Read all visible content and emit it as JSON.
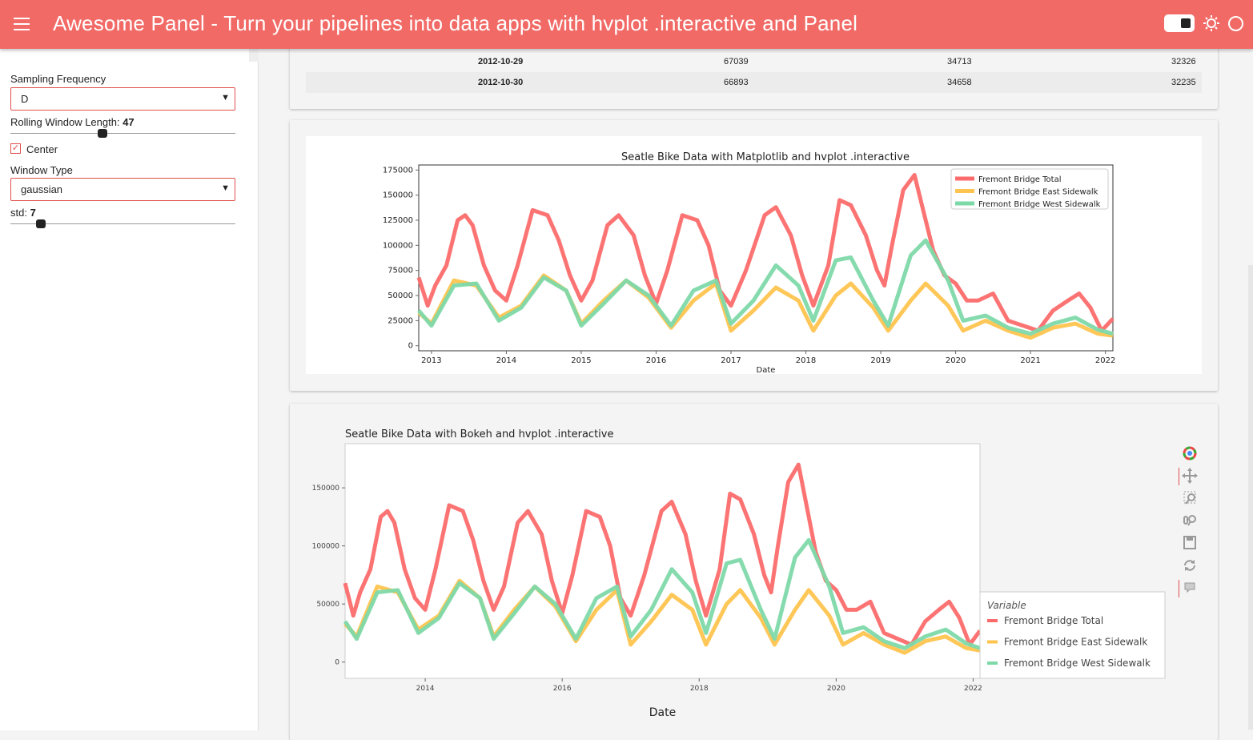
{
  "header": {
    "title": "Awesome Panel  -  Turn your pipelines into data apps with hvplot .interactive and Panel"
  },
  "sidebar": {
    "sampling_frequency_label": "Sampling Frequency",
    "sampling_frequency_value": "D",
    "rolling_window_label": "Rolling Window Length: ",
    "rolling_window_value": "47",
    "rolling_window_fraction": 0.41,
    "center_label": "Center",
    "center_checked": true,
    "window_type_label": "Window Type",
    "window_type_value": "gaussian",
    "std_label": "std: ",
    "std_value": "7",
    "std_fraction": 0.135
  },
  "table": {
    "rows": [
      [
        "2012-10-29",
        "67039",
        "34713",
        "32326"
      ],
      [
        "2012-10-30",
        "66893",
        "34658",
        "32235"
      ]
    ]
  },
  "colors": {
    "accent": "#f16a66",
    "total": "#fc6b6b",
    "east": "#fec44f",
    "west": "#7ed9a9"
  },
  "icons": [
    "menu-icon",
    "theme-toggle-icon",
    "sun-icon",
    "circle-icon",
    "bokeh-logo-icon",
    "pan-icon",
    "box-zoom-icon",
    "wheel-zoom-icon",
    "save-icon",
    "reset-icon",
    "hover-icon"
  ],
  "chart_data": [
    {
      "type": "line",
      "title": "Seatle Bike Data with Matplotlib and hvplot .interactive",
      "xlabel": "Date",
      "ylabel": "",
      "x_ticks": [
        "2013",
        "2014",
        "2015",
        "2016",
        "2017",
        "2018",
        "2019",
        "2020",
        "2021",
        "2022"
      ],
      "y_ticks": [
        "0",
        "25000",
        "50000",
        "75000",
        "100000",
        "125000",
        "150000",
        "175000"
      ],
      "xlim": [
        2012.83,
        2022.1
      ],
      "ylim": [
        -5000,
        180000
      ],
      "legend_position": "top-right",
      "series": [
        {
          "name": "Fremont Bridge Total",
          "x": [
            2012.83,
            2012.95,
            2013.05,
            2013.2,
            2013.35,
            2013.45,
            2013.55,
            2013.7,
            2013.85,
            2014.0,
            2014.15,
            2014.35,
            2014.55,
            2014.7,
            2014.85,
            2015.0,
            2015.15,
            2015.35,
            2015.5,
            2015.7,
            2015.85,
            2016.0,
            2016.15,
            2016.35,
            2016.55,
            2016.7,
            2016.85,
            2017.0,
            2017.2,
            2017.45,
            2017.6,
            2017.8,
            2017.95,
            2018.1,
            2018.3,
            2018.45,
            2018.6,
            2018.8,
            2018.95,
            2019.05,
            2019.15,
            2019.3,
            2019.45,
            2019.55,
            2019.7,
            2019.85,
            2020.0,
            2020.15,
            2020.3,
            2020.5,
            2020.7,
            2020.9,
            2021.1,
            2021.3,
            2021.5,
            2021.65,
            2021.8,
            2021.95,
            2022.1
          ],
          "y": [
            68000,
            40000,
            60000,
            80000,
            125000,
            130000,
            120000,
            80000,
            55000,
            45000,
            80000,
            135000,
            130000,
            105000,
            70000,
            45000,
            65000,
            120000,
            130000,
            110000,
            70000,
            42000,
            75000,
            130000,
            125000,
            100000,
            55000,
            40000,
            75000,
            130000,
            138000,
            110000,
            70000,
            40000,
            80000,
            145000,
            140000,
            110000,
            75000,
            60000,
            100000,
            155000,
            170000,
            140000,
            95000,
            70000,
            62000,
            45000,
            45000,
            52000,
            25000,
            20000,
            15000,
            35000,
            45000,
            52000,
            38000,
            15000,
            27000
          ]
        },
        {
          "name": "Fremont Bridge East Sidewalk",
          "x": [
            2012.83,
            2013.0,
            2013.3,
            2013.6,
            2013.9,
            2014.2,
            2014.5,
            2014.8,
            2015.0,
            2015.3,
            2015.6,
            2015.9,
            2016.2,
            2016.5,
            2016.8,
            2017.0,
            2017.3,
            2017.6,
            2017.9,
            2018.1,
            2018.4,
            2018.6,
            2018.9,
            2019.1,
            2019.4,
            2019.6,
            2019.9,
            2020.1,
            2020.4,
            2020.7,
            2021.0,
            2021.3,
            2021.6,
            2021.9,
            2022.1
          ],
          "y": [
            33000,
            22000,
            65000,
            60000,
            28000,
            40000,
            70000,
            55000,
            22000,
            45000,
            65000,
            48000,
            18000,
            45000,
            62000,
            15000,
            35000,
            58000,
            45000,
            15000,
            50000,
            62000,
            38000,
            15000,
            45000,
            62000,
            40000,
            15000,
            25000,
            15000,
            8000,
            18000,
            22000,
            12000,
            10000
          ]
        },
        {
          "name": "Fremont Bridge West Sidewalk",
          "x": [
            2012.83,
            2013.0,
            2013.3,
            2013.6,
            2013.9,
            2014.2,
            2014.5,
            2014.8,
            2015.0,
            2015.3,
            2015.6,
            2015.9,
            2016.2,
            2016.5,
            2016.8,
            2017.0,
            2017.3,
            2017.6,
            2017.9,
            2018.1,
            2018.4,
            2018.6,
            2018.9,
            2019.1,
            2019.4,
            2019.6,
            2019.9,
            2020.1,
            2020.4,
            2020.7,
            2021.0,
            2021.3,
            2021.6,
            2021.9,
            2022.1
          ],
          "y": [
            35000,
            20000,
            60000,
            62000,
            25000,
            38000,
            68000,
            55000,
            20000,
            42000,
            65000,
            50000,
            20000,
            55000,
            65000,
            22000,
            45000,
            80000,
            60000,
            25000,
            85000,
            88000,
            45000,
            20000,
            90000,
            105000,
            65000,
            25000,
            30000,
            18000,
            12000,
            22000,
            28000,
            16000,
            12000
          ]
        }
      ]
    },
    {
      "type": "line",
      "title": "Seatle Bike Data with Bokeh and hvplot .interactive",
      "xlabel": "Date",
      "ylabel": "",
      "x_ticks": [
        "2014",
        "2016",
        "2018",
        "2020",
        "2022"
      ],
      "y_ticks": [
        "0",
        "50000",
        "100000",
        "150000"
      ],
      "xlim": [
        2012.83,
        2022.1
      ],
      "ylim": [
        -14000,
        188000
      ],
      "legend_title": "Variable",
      "legend_position": "right",
      "series": [
        {
          "name": "Fremont Bridge Total",
          "x": [
            2012.83,
            2012.95,
            2013.05,
            2013.2,
            2013.35,
            2013.45,
            2013.55,
            2013.7,
            2013.85,
            2014.0,
            2014.15,
            2014.35,
            2014.55,
            2014.7,
            2014.85,
            2015.0,
            2015.15,
            2015.35,
            2015.5,
            2015.7,
            2015.85,
            2016.0,
            2016.15,
            2016.35,
            2016.55,
            2016.7,
            2016.85,
            2017.0,
            2017.2,
            2017.45,
            2017.6,
            2017.8,
            2017.95,
            2018.1,
            2018.3,
            2018.45,
            2018.6,
            2018.8,
            2018.95,
            2019.05,
            2019.15,
            2019.3,
            2019.45,
            2019.55,
            2019.7,
            2019.85,
            2020.0,
            2020.15,
            2020.3,
            2020.5,
            2020.7,
            2020.9,
            2021.1,
            2021.3,
            2021.5,
            2021.65,
            2021.8,
            2021.95,
            2022.1
          ],
          "y": [
            68000,
            40000,
            60000,
            80000,
            125000,
            130000,
            120000,
            80000,
            55000,
            45000,
            80000,
            135000,
            130000,
            105000,
            70000,
            45000,
            65000,
            120000,
            130000,
            110000,
            70000,
            42000,
            75000,
            130000,
            125000,
            100000,
            55000,
            40000,
            75000,
            130000,
            138000,
            110000,
            70000,
            40000,
            80000,
            145000,
            140000,
            110000,
            75000,
            60000,
            100000,
            155000,
            170000,
            140000,
            95000,
            70000,
            62000,
            45000,
            45000,
            52000,
            25000,
            20000,
            15000,
            35000,
            45000,
            52000,
            38000,
            15000,
            27000
          ]
        },
        {
          "name": "Fremont Bridge East Sidewalk",
          "x": [
            2012.83,
            2013.0,
            2013.3,
            2013.6,
            2013.9,
            2014.2,
            2014.5,
            2014.8,
            2015.0,
            2015.3,
            2015.6,
            2015.9,
            2016.2,
            2016.5,
            2016.8,
            2017.0,
            2017.3,
            2017.6,
            2017.9,
            2018.1,
            2018.4,
            2018.6,
            2018.9,
            2019.1,
            2019.4,
            2019.6,
            2019.9,
            2020.1,
            2020.4,
            2020.7,
            2021.0,
            2021.3,
            2021.6,
            2021.9,
            2022.1
          ],
          "y": [
            33000,
            22000,
            65000,
            60000,
            28000,
            40000,
            70000,
            55000,
            22000,
            45000,
            65000,
            48000,
            18000,
            45000,
            62000,
            15000,
            35000,
            58000,
            45000,
            15000,
            50000,
            62000,
            38000,
            15000,
            45000,
            62000,
            40000,
            15000,
            25000,
            15000,
            8000,
            18000,
            22000,
            12000,
            10000
          ]
        },
        {
          "name": "Fremont Bridge West Sidewalk",
          "x": [
            2012.83,
            2013.0,
            2013.3,
            2013.6,
            2013.9,
            2014.2,
            2014.5,
            2014.8,
            2015.0,
            2015.3,
            2015.6,
            2015.9,
            2016.2,
            2016.5,
            2016.8,
            2017.0,
            2017.3,
            2017.6,
            2017.9,
            2018.1,
            2018.4,
            2018.6,
            2018.9,
            2019.1,
            2019.4,
            2019.6,
            2019.9,
            2020.1,
            2020.4,
            2020.7,
            2021.0,
            2021.3,
            2021.6,
            2021.9,
            2022.1
          ],
          "y": [
            35000,
            20000,
            60000,
            62000,
            25000,
            38000,
            68000,
            55000,
            20000,
            42000,
            65000,
            50000,
            20000,
            55000,
            65000,
            22000,
            45000,
            80000,
            60000,
            25000,
            85000,
            88000,
            45000,
            20000,
            90000,
            105000,
            65000,
            25000,
            30000,
            18000,
            12000,
            22000,
            28000,
            16000,
            12000
          ]
        }
      ]
    }
  ]
}
